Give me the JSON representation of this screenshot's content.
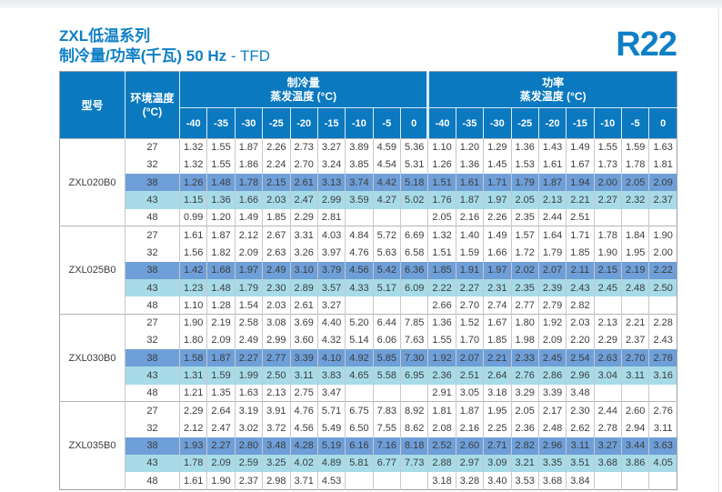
{
  "page": {
    "series_title": "ZXL低温系列",
    "subtitle_main": "制冷量/功率(千瓦)  50 Hz ",
    "subtitle_suffix": "- TFD",
    "refrigerant": "R22"
  },
  "colors": {
    "brand_blue": "#0f80c5",
    "header_blue": "#0b79c0",
    "highlight_medium": "#6f9fd8",
    "highlight_light": "#a8dbe8"
  },
  "table": {
    "model_header": "型号",
    "ambient_header_line1": "环境温度",
    "ambient_header_line2": "(°C)",
    "capacity_group_line1": "制冷量",
    "capacity_group_line2": "蒸发温度 (°C)",
    "power_group_line1": "功率",
    "power_group_line2": "蒸发温度 (°C)",
    "evap_temps": [
      "-40",
      "-35",
      "-30",
      "-25",
      "-20",
      "-15",
      "-10",
      "-5",
      "0"
    ],
    "models": [
      {
        "model": "ZXL020B0",
        "rows": [
          {
            "ambient": "27",
            "highlight": "none",
            "capacity": [
              "1.32",
              "1.55",
              "1.87",
              "2.26",
              "2.73",
              "3.27",
              "3.89",
              "4.59",
              "5.36"
            ],
            "power": [
              "1.10",
              "1.20",
              "1.29",
              "1.36",
              "1.43",
              "1.49",
              "1.55",
              "1.59",
              "1.63"
            ]
          },
          {
            "ambient": "32",
            "highlight": "none",
            "capacity": [
              "1.32",
              "1.55",
              "1.86",
              "2.24",
              "2.70",
              "3.24",
              "3.85",
              "4.54",
              "5.31"
            ],
            "power": [
              "1.26",
              "1.36",
              "1.45",
              "1.53",
              "1.61",
              "1.67",
              "1.73",
              "1.78",
              "1.81"
            ]
          },
          {
            "ambient": "38",
            "highlight": "medium",
            "capacity": [
              "1.26",
              "1.48",
              "1.78",
              "2.15",
              "2.61",
              "3.13",
              "3.74",
              "4.42",
              "5.18"
            ],
            "power": [
              "1.51",
              "1.61",
              "1.71",
              "1.79",
              "1.87",
              "1.94",
              "2.00",
              "2.05",
              "2.09"
            ]
          },
          {
            "ambient": "43",
            "highlight": "light",
            "capacity": [
              "1.15",
              "1.36",
              "1.66",
              "2.03",
              "2.47",
              "2.99",
              "3.59",
              "4.27",
              "5.02"
            ],
            "power": [
              "1.76",
              "1.87",
              "1.97",
              "2.05",
              "2.13",
              "2.21",
              "2.27",
              "2.32",
              "2.37"
            ]
          },
          {
            "ambient": "48",
            "highlight": "none",
            "capacity": [
              "0.99",
              "1.20",
              "1.49",
              "1.85",
              "2.29",
              "2.81",
              "",
              "",
              ""
            ],
            "power": [
              "2.05",
              "2.16",
              "2.26",
              "2.35",
              "2.44",
              "2.51",
              "",
              "",
              ""
            ]
          }
        ]
      },
      {
        "model": "ZXL025B0",
        "rows": [
          {
            "ambient": "27",
            "highlight": "none",
            "capacity": [
              "1.61",
              "1.87",
              "2.12",
              "2.67",
              "3.31",
              "4.03",
              "4.84",
              "5.72",
              "6.69"
            ],
            "power": [
              "1.32",
              "1.40",
              "1.49",
              "1.57",
              "1.64",
              "1.71",
              "1.78",
              "1.84",
              "1.90"
            ]
          },
          {
            "ambient": "32",
            "highlight": "none",
            "capacity": [
              "1.56",
              "1.82",
              "2.09",
              "2.63",
              "3.26",
              "3.97",
              "4.76",
              "5.63",
              "6.58"
            ],
            "power": [
              "1.51",
              "1.59",
              "1.66",
              "1.72",
              "1.79",
              "1.85",
              "1.90",
              "1.95",
              "2.00"
            ]
          },
          {
            "ambient": "38",
            "highlight": "medium",
            "capacity": [
              "1.42",
              "1.68",
              "1.97",
              "2.49",
              "3.10",
              "3.79",
              "4.56",
              "5.42",
              "6.36"
            ],
            "power": [
              "1.85",
              "1.91",
              "1.97",
              "2.02",
              "2.07",
              "2.11",
              "2.15",
              "2.19",
              "2.22"
            ]
          },
          {
            "ambient": "43",
            "highlight": "light",
            "capacity": [
              "1.23",
              "1.48",
              "1.79",
              "2.30",
              "2.89",
              "3.57",
              "4.33",
              "5.17",
              "6.09"
            ],
            "power": [
              "2.22",
              "2.27",
              "2.31",
              "2.35",
              "2.39",
              "2.43",
              "2.45",
              "2.48",
              "2.50"
            ]
          },
          {
            "ambient": "48",
            "highlight": "none",
            "capacity": [
              "1.10",
              "1.28",
              "1.54",
              "2.03",
              "2.61",
              "3.27",
              "",
              "",
              ""
            ],
            "power": [
              "2.66",
              "2.70",
              "2.74",
              "2.77",
              "2.79",
              "2.82",
              "",
              "",
              ""
            ]
          }
        ]
      },
      {
        "model": "ZXL030B0",
        "rows": [
          {
            "ambient": "27",
            "highlight": "none",
            "capacity": [
              "1.90",
              "2.19",
              "2.58",
              "3.08",
              "3.69",
              "4.40",
              "5.20",
              "6.44",
              "7.85"
            ],
            "power": [
              "1.36",
              "1.52",
              "1.67",
              "1.80",
              "1.92",
              "2.03",
              "2.13",
              "2.21",
              "2.28"
            ]
          },
          {
            "ambient": "32",
            "highlight": "none",
            "capacity": [
              "1.80",
              "2.09",
              "2.49",
              "2.99",
              "3.60",
              "4.32",
              "5.14",
              "6.06",
              "7.63"
            ],
            "power": [
              "1.55",
              "1.70",
              "1.85",
              "1.98",
              "2.09",
              "2.20",
              "2.29",
              "2.37",
              "2.43"
            ]
          },
          {
            "ambient": "38",
            "highlight": "medium",
            "capacity": [
              "1.58",
              "1.87",
              "2.27",
              "2.77",
              "3.39",
              "4.10",
              "4.92",
              "5.85",
              "7.30"
            ],
            "power": [
              "1.92",
              "2.07",
              "2.21",
              "2.33",
              "2.45",
              "2.54",
              "2.63",
              "2.70",
              "2.76"
            ]
          },
          {
            "ambient": "43",
            "highlight": "light",
            "capacity": [
              "1.31",
              "1.59",
              "1.99",
              "2.50",
              "3.11",
              "3.83",
              "4.65",
              "5.58",
              "6.95"
            ],
            "power": [
              "2.36",
              "2.51",
              "2.64",
              "2.76",
              "2.86",
              "2.96",
              "3.04",
              "3.11",
              "3.16"
            ]
          },
          {
            "ambient": "48",
            "highlight": "none",
            "capacity": [
              "1.21",
              "1.35",
              "1.63",
              "2.13",
              "2.75",
              "3.47",
              "",
              "",
              ""
            ],
            "power": [
              "2.91",
              "3.05",
              "3.18",
              "3.29",
              "3.39",
              "3.48",
              "",
              "",
              ""
            ]
          }
        ]
      },
      {
        "model": "ZXL035B0",
        "rows": [
          {
            "ambient": "27",
            "highlight": "none",
            "capacity": [
              "2.29",
              "2.64",
              "3.19",
              "3.91",
              "4.76",
              "5.71",
              "6.75",
              "7.83",
              "8.92"
            ],
            "power": [
              "1.81",
              "1.87",
              "1.95",
              "2.05",
              "2.17",
              "2.30",
              "2.44",
              "2.60",
              "2.76"
            ]
          },
          {
            "ambient": "32",
            "highlight": "none",
            "capacity": [
              "2.12",
              "2.47",
              "3.02",
              "3.72",
              "4.56",
              "5.49",
              "6.50",
              "7.55",
              "8.62"
            ],
            "power": [
              "2.08",
              "2.16",
              "2.25",
              "2.36",
              "2.48",
              "2.62",
              "2.78",
              "2.94",
              "3.11"
            ]
          },
          {
            "ambient": "38",
            "highlight": "medium",
            "capacity": [
              "1.93",
              "2.27",
              "2.80",
              "3.48",
              "4.28",
              "5.19",
              "6.16",
              "7.16",
              "8.18"
            ],
            "power": [
              "2.52",
              "2.60",
              "2.71",
              "2.82",
              "2.96",
              "3.11",
              "3.27",
              "3.44",
              "3.63"
            ]
          },
          {
            "ambient": "43",
            "highlight": "light",
            "capacity": [
              "1.78",
              "2.09",
              "2.59",
              "3.25",
              "4.02",
              "4.89",
              "5.81",
              "6.77",
              "7.73"
            ],
            "power": [
              "2.88",
              "2.97",
              "3.09",
              "3.21",
              "3.35",
              "3.51",
              "3.68",
              "3.86",
              "4.05"
            ]
          },
          {
            "ambient": "48",
            "highlight": "none",
            "capacity": [
              "1.61",
              "1.90",
              "2.37",
              "2.98",
              "3.71",
              "4.53",
              "",
              "",
              ""
            ],
            "power": [
              "3.18",
              "3.28",
              "3.40",
              "3.53",
              "3.68",
              "3.84",
              "",
              "",
              ""
            ]
          }
        ]
      }
    ]
  }
}
